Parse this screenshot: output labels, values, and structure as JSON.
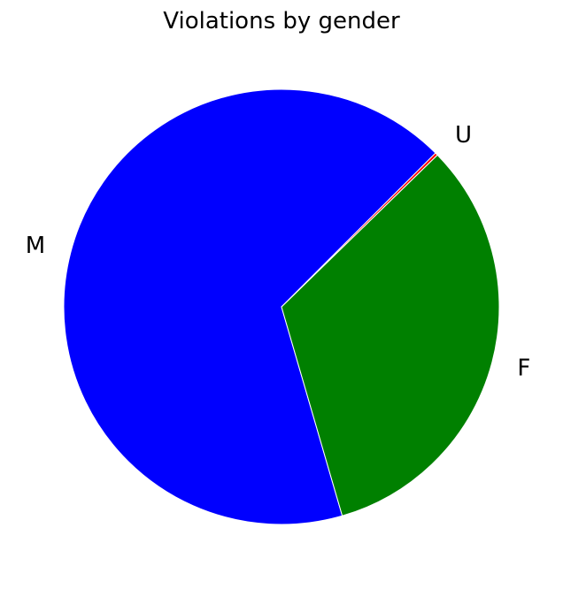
{
  "chart_data": {
    "type": "pie",
    "title": "Violations by gender",
    "slices": [
      {
        "label": "M",
        "value": 67.0,
        "color": "#0000ff"
      },
      {
        "label": "F",
        "value": 32.8,
        "color": "#008000"
      },
      {
        "label": "U",
        "value": 0.2,
        "color": "#ff0000"
      }
    ],
    "start_angle_deg": 45,
    "direction": "counterclockwise",
    "edge_color": "#ffffff"
  }
}
